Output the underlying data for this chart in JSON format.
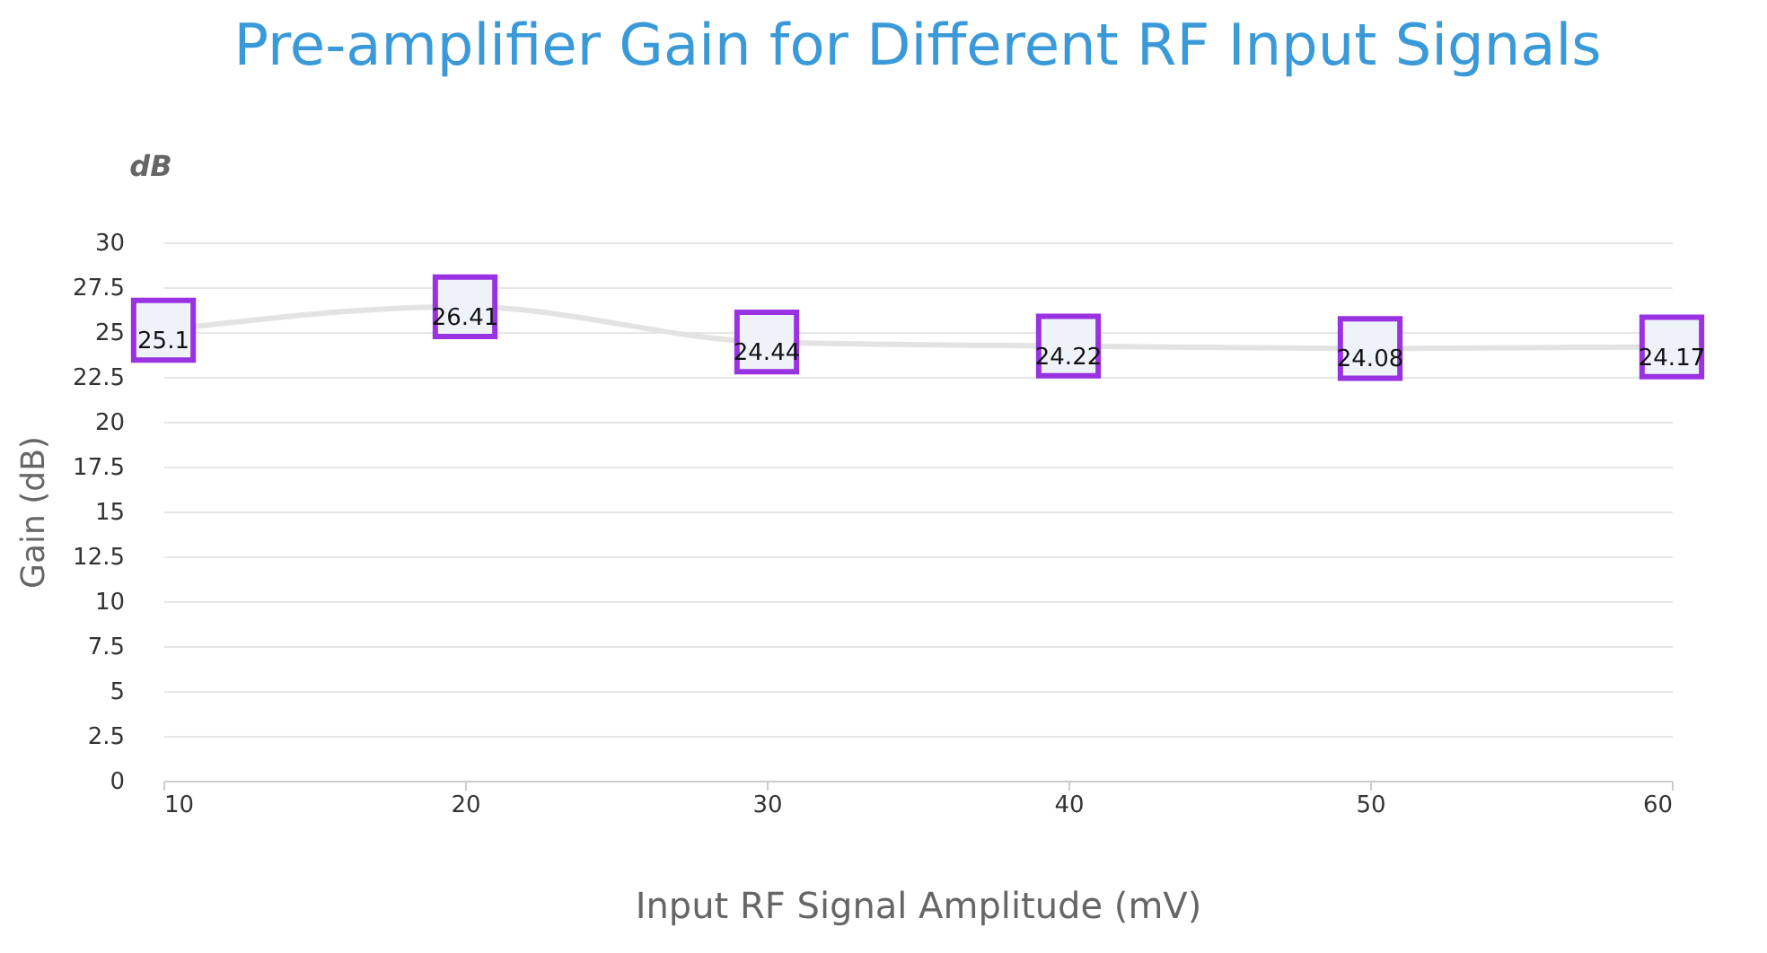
{
  "chart_data": {
    "type": "line",
    "title": "Pre-amplifier Gain for Different RF Input Signals",
    "xlabel": "Input RF Signal Amplitude (mV)",
    "ylabel": "Gain (dB)",
    "annotations": [
      "dB"
    ],
    "x": [
      10,
      20,
      30,
      40,
      50,
      60
    ],
    "series": [
      {
        "color": "#e3e3e3",
        "colors": [
          "#9932e0",
          "#9932e0",
          "#9932e0",
          "#9932e0",
          "#9932e0",
          "#9932e0"
        ],
        "values": [
          25.1,
          26.41,
          24.44,
          24.22,
          24.08,
          24.17
        ]
      }
    ],
    "xlim": [
      10,
      60
    ],
    "xticks": [
      10,
      20,
      30,
      40,
      50,
      60
    ],
    "ylim": [
      0,
      30
    ],
    "yticks": [
      0,
      2.5,
      5,
      7.5,
      10,
      12.5,
      15,
      17.5,
      20,
      22.5,
      25,
      27.5,
      30
    ],
    "grid": "y",
    "marker": "square",
    "line_style": "solid",
    "data_labels": true
  }
}
